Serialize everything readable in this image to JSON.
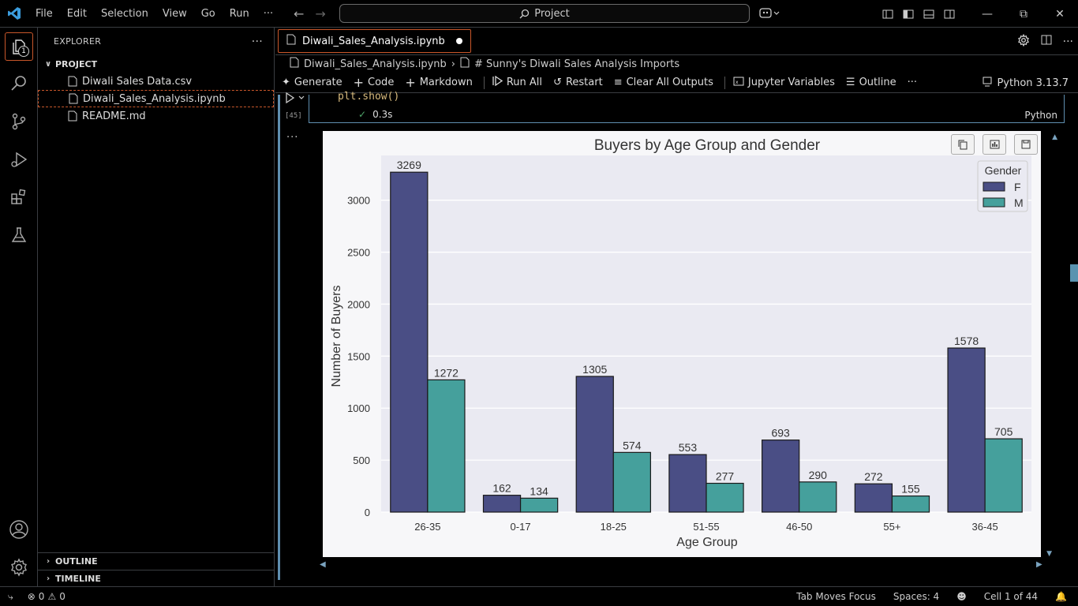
{
  "titlebar": {
    "menu": [
      "File",
      "Edit",
      "Selection",
      "View",
      "Go",
      "Run",
      "···"
    ],
    "search": "Project"
  },
  "activity": {
    "explorer_badge": "1"
  },
  "sidebar": {
    "title": "EXPLORER",
    "more": "···",
    "project": "PROJECT",
    "files": [
      "Diwali Sales Data.csv",
      "Diwali_Sales_Analysis.ipynb",
      "README.md"
    ],
    "outline": "OUTLINE",
    "timeline": "TIMELINE"
  },
  "editor": {
    "tab": "Diwali_Sales_Analysis.ipynb",
    "breadcrumb": {
      "file": "Diwali_Sales_Analysis.ipynb",
      "section": "# Sunny's Diwali Sales Analysis Imports"
    },
    "toolbar": {
      "generate": "Generate",
      "code": "Code",
      "markdown": "Markdown",
      "run_all": "Run All",
      "restart": "Restart",
      "clear": "Clear All Outputs",
      "variables": "Jupyter Variables",
      "outline": "Outline",
      "more": "···",
      "kernel": "Python 3.13.7"
    },
    "cell": {
      "code": "plt.show()",
      "exec_count": "[45]",
      "time": "0.3s",
      "language": "Python",
      "output_dots": "···"
    }
  },
  "status": {
    "errors": "0",
    "warnings": "0",
    "tab_focus": "Tab Moves Focus",
    "spaces": "Spaces: 4",
    "cell": "Cell 1 of 44"
  },
  "colors": {
    "female": "#4a4e85",
    "male": "#45a09c",
    "accent": "#c9572a"
  },
  "chart_data": {
    "type": "bar",
    "title": "Buyers by Age Group and Gender",
    "xlabel": "Age Group",
    "ylabel": "Number of Buyers",
    "categories": [
      "26-35",
      "0-17",
      "18-25",
      "51-55",
      "46-50",
      "55+",
      "36-45"
    ],
    "series": [
      {
        "name": "F",
        "values": [
          3269,
          162,
          1305,
          553,
          693,
          272,
          1578
        ]
      },
      {
        "name": "M",
        "values": [
          1272,
          134,
          574,
          277,
          290,
          155,
          705
        ]
      }
    ],
    "legend_title": "Gender",
    "legend_position": "top-right",
    "yticks": [
      0,
      500,
      1000,
      1500,
      2000,
      2500,
      3000
    ],
    "ylim": [
      0,
      3430
    ],
    "grid": true
  }
}
